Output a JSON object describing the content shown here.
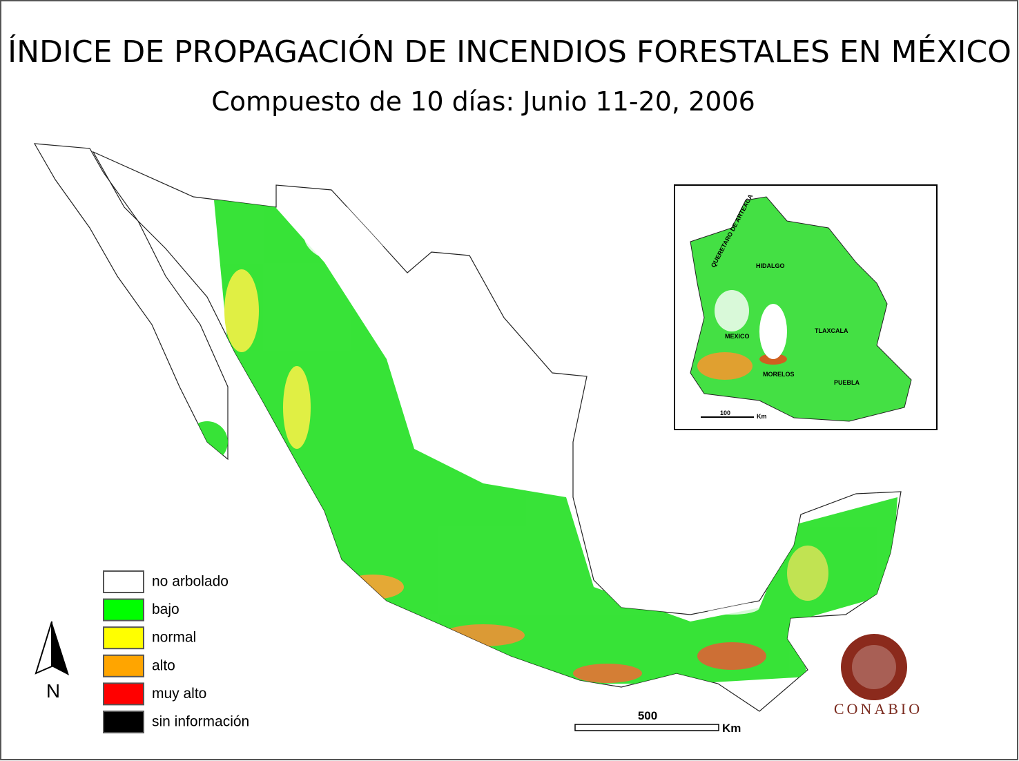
{
  "title": "ÍNDICE DE PROPAGACIÓN DE INCENDIOS FORESTALES EN MÉXICO",
  "subtitle": "Compuesto de 10 días: Junio 11-20, 2006",
  "legend": {
    "items": [
      {
        "label": "no arbolado",
        "color": "#ffffff"
      },
      {
        "label": "bajo",
        "color": "#00ff00"
      },
      {
        "label": "normal",
        "color": "#ffff00"
      },
      {
        "label": "alto",
        "color": "#ffa500"
      },
      {
        "label": "muy alto",
        "color": "#ff0000"
      },
      {
        "label": "sin información",
        "color": "#000000"
      }
    ]
  },
  "inset": {
    "labels": [
      "QUERETARO DE ARTEAGA",
      "HIDALGO",
      "MEXICO",
      "TLAXCALA",
      "MORELOS",
      "PUEBLA"
    ],
    "scale": {
      "label": "100",
      "unit": "Km"
    }
  },
  "scale": {
    "label": "500",
    "unit": "Km"
  },
  "north": "N",
  "logo": "CONABIO"
}
